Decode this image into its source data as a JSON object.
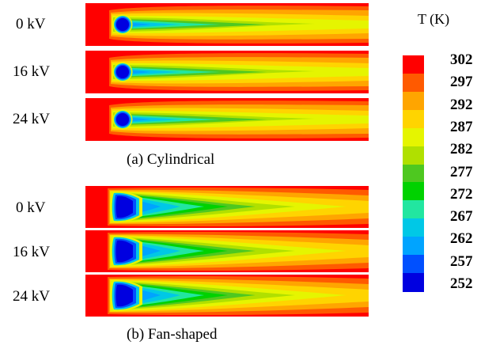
{
  "colorbar": {
    "title": "T (K)",
    "ticks": [
      "302",
      "297",
      "292",
      "287",
      "282",
      "277",
      "272",
      "267",
      "262",
      "257",
      "252"
    ],
    "colors": [
      "#ff0000",
      "#ff5a00",
      "#ffa500",
      "#ffd400",
      "#e5f500",
      "#b0e000",
      "#4ec820",
      "#00d200",
      "#22e6a0",
      "#00c8e6",
      "#00a4ff",
      "#0050ff",
      "#0000e0"
    ]
  },
  "groups": [
    {
      "caption": "(a) Cylindrical",
      "rows": [
        {
          "label": "0 kV"
        },
        {
          "label": "16 kV"
        },
        {
          "label": "24 kV"
        }
      ]
    },
    {
      "caption": "(b) Fan-shaped",
      "rows": [
        {
          "label": "0 kV"
        },
        {
          "label": "16 kV"
        },
        {
          "label": "24 kV"
        }
      ]
    }
  ]
}
